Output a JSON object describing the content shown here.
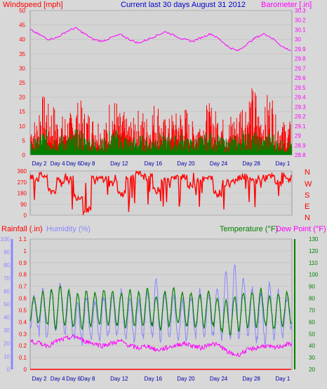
{
  "colors": {
    "background": "#d8d8d8",
    "plot_bg": "#d4d4d4",
    "wind": "#ff0000",
    "wind_avg": "#008000",
    "baro": "#ff00ff",
    "title": "#0000cc",
    "rain": "#ff0000",
    "humidity": "#8888ff",
    "temperature": "#008000",
    "dewpoint": "#ff00ff",
    "day_label": "#0000aa"
  },
  "chart_data": [
    {
      "type": "line",
      "title": "Current last 30 days August 31 2012",
      "y_left_label": "Windspeed [mph]",
      "y_right_label": "Barometer [.in]",
      "x_labels": [
        "Day 2",
        "Day 4",
        "Day 6",
        "Day 8",
        "Day 12",
        "Day 16",
        "Day 20",
        "Day 24",
        "Day 28",
        "Day 1"
      ],
      "y_left_ticks": [
        "0",
        "5",
        "10",
        "15",
        "20",
        "25",
        "30",
        "35",
        "40",
        "45",
        "50"
      ],
      "y_left_range": [
        0,
        50
      ],
      "y_right_ticks": [
        "28.8",
        "28.9",
        "29",
        "29.1",
        "29.2",
        "29.3",
        "29.4",
        "29.5",
        "29.6",
        "29.7",
        "29.8",
        "29.9",
        "30",
        "30.1",
        "30.2",
        "30.3"
      ],
      "y_right_range": [
        28.8,
        30.3
      ],
      "series": [
        {
          "name": "Windspeed [mph]",
          "color": "#ff0000",
          "style": "spikes",
          "days": 30,
          "approx_daily_peak": [
            13,
            21,
            18,
            14,
            15,
            19,
            16,
            14,
            12,
            20,
            15,
            13,
            16,
            14,
            19,
            13,
            15,
            17,
            12,
            14,
            18,
            16,
            13,
            15,
            21,
            24,
            17,
            22,
            14,
            12
          ]
        },
        {
          "color": "#008000",
          "style": "spikes",
          "days": 30,
          "approx_daily_peak": [
            6,
            9,
            8,
            7,
            8,
            9,
            7,
            6,
            6,
            9,
            8,
            6,
            7,
            6,
            8,
            7,
            7,
            8,
            6,
            7,
            8,
            7,
            6,
            7,
            9,
            8,
            7,
            8,
            6,
            5
          ]
        },
        {
          "name": "Barometer [.in]",
          "color": "#ff00ff",
          "style": "line",
          "days": 30,
          "approx_daily": [
            30.1,
            30.05,
            30.0,
            30.02,
            30.08,
            30.12,
            30.06,
            30.0,
            29.98,
            30.02,
            30.05,
            30.0,
            29.96,
            30.0,
            30.04,
            30.08,
            30.04,
            30.0,
            29.98,
            30.02,
            30.06,
            30.0,
            29.92,
            29.88,
            29.95,
            30.02,
            30.06,
            30.0,
            29.92,
            29.88
          ]
        }
      ]
    },
    {
      "type": "line",
      "y_right_label_letters": [
        "N",
        "W",
        "S",
        "E",
        "N"
      ],
      "y_ticks": [
        "0",
        "90",
        "180",
        "270",
        "360"
      ],
      "y_range": [
        0,
        360
      ],
      "series": [
        {
          "color": "#ff0000",
          "style": "line",
          "days": 30,
          "approx_daily": [
            300,
            320,
            200,
            280,
            310,
            150,
            40,
            290,
            300,
            260,
            180,
            300,
            330,
            310,
            200,
            280,
            300,
            320,
            240,
            290,
            300,
            180,
            260,
            300,
            320,
            280,
            300,
            310,
            260,
            300
          ]
        }
      ]
    },
    {
      "type": "line",
      "y_left_labels": [
        "Rainfall (.in)",
        "Humidity (%)"
      ],
      "y_right_labels": [
        "Temperature (°F)",
        "Dew Point (°F)"
      ],
      "x_labels": [
        "Day 2",
        "Day 4",
        "Day 6",
        "Day 8",
        "Day 12",
        "Day 16",
        "Day 20",
        "Day 24",
        "Day 28",
        "Day 1"
      ],
      "y_humidity_ticks": [
        "0",
        "10",
        "20",
        "30",
        "40",
        "50",
        "60",
        "70",
        "80",
        "90",
        "100"
      ],
      "y_humidity_range": [
        0,
        100
      ],
      "y_rain_ticks": [
        "0",
        "0.1",
        "0.2",
        "0.3",
        "0.4",
        "0.5",
        "0.6",
        "0.7",
        "0.8",
        "0.9",
        "1",
        "1.1"
      ],
      "y_rain_range": [
        0,
        1.1
      ],
      "y_temp_ticks": [
        "20",
        "30",
        "40",
        "50",
        "60",
        "70",
        "80",
        "90",
        "100",
        "110",
        "120",
        "130"
      ],
      "y_temp_range": [
        20,
        130
      ],
      "series": [
        {
          "name": "Rainfall (.in)",
          "color": "#ff0000",
          "style": "line",
          "days": 30,
          "approx_daily": [
            0,
            0,
            0,
            0,
            0,
            0,
            0,
            0,
            0,
            0,
            0,
            0,
            0,
            0,
            0,
            0,
            0,
            0,
            0,
            0,
            0,
            0,
            0,
            0,
            0,
            0,
            0,
            0,
            0,
            0
          ]
        },
        {
          "name": "Humidity (%)",
          "color": "#8888ff",
          "style": "line",
          "days": 30,
          "approx_daily_min": [
            30,
            25,
            28,
            30,
            26,
            20,
            24,
            22,
            25,
            26,
            24,
            22,
            25,
            28,
            20,
            26,
            24,
            22,
            25,
            27,
            26,
            24,
            22,
            24,
            26,
            22,
            20,
            24,
            26,
            30
          ],
          "approx_daily_max": [
            55,
            60,
            62,
            65,
            58,
            50,
            56,
            52,
            55,
            58,
            60,
            55,
            52,
            58,
            70,
            60,
            55,
            52,
            56,
            60,
            58,
            62,
            75,
            80,
            70,
            62,
            58,
            65,
            60,
            55
          ]
        },
        {
          "name": "Temperature (°F)",
          "color": "#008000",
          "style": "line",
          "days": 30,
          "approx_daily_min": [
            60,
            58,
            55,
            58,
            56,
            54,
            56,
            58,
            57,
            58,
            55,
            57,
            56,
            58,
            54,
            56,
            58,
            57,
            56,
            55,
            58,
            54,
            50,
            52,
            55,
            56,
            58,
            54,
            55,
            58
          ],
          "approx_daily_max": [
            82,
            85,
            88,
            90,
            86,
            84,
            86,
            85,
            88,
            86,
            84,
            87,
            85,
            88,
            82,
            86,
            88,
            84,
            85,
            83,
            86,
            80,
            78,
            82,
            85,
            86,
            88,
            82,
            84,
            85
          ]
        },
        {
          "name": "Dew Point (°F)",
          "color": "#ff00ff",
          "style": "line",
          "days": 30,
          "approx_daily": [
            44,
            42,
            40,
            44,
            46,
            48,
            44,
            42,
            40,
            42,
            44,
            40,
            38,
            40,
            36,
            38,
            40,
            42,
            40,
            38,
            42,
            40,
            34,
            32,
            36,
            38,
            40,
            38,
            40,
            42
          ]
        }
      ]
    }
  ]
}
